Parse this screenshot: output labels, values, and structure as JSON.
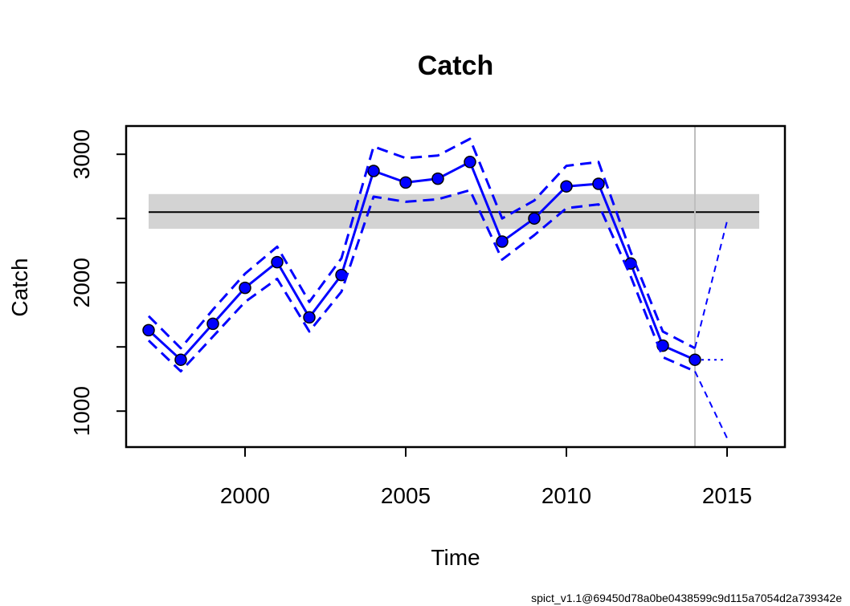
{
  "chart_data": {
    "type": "line",
    "title": "Catch",
    "xlabel": "Time",
    "ylabel": "Catch",
    "xlim": [
      1996.3,
      2016.8
    ],
    "ylim": [
      720,
      3220
    ],
    "x_ticks": [
      2000,
      2005,
      2010,
      2015
    ],
    "y_ticks": [
      1000,
      1500,
      2000,
      2500,
      3000
    ],
    "y_tick_labels": [
      "1000",
      "",
      "2000",
      "",
      "3000"
    ],
    "grid": false,
    "colors": {
      "series": "#0000ff",
      "band": "#d3d3d3",
      "reference": "#000000",
      "vline": "#bebebe"
    },
    "reference_band": {
      "x": [
        1997,
        2016
      ],
      "lower": 2420,
      "center": 2550,
      "upper": 2690
    },
    "vertical_line_x": 2014,
    "series": [
      {
        "role": "estimate",
        "style": "solid-with-points",
        "x": [
          1997,
          1998,
          1999,
          2000,
          2001,
          2002,
          2003,
          2004,
          2005,
          2006,
          2007,
          2008,
          2009,
          2010,
          2011,
          2012,
          2013,
          2014
        ],
        "values": [
          1630,
          1400,
          1680,
          1960,
          2160,
          1730,
          2060,
          2870,
          2780,
          2810,
          2940,
          2320,
          2500,
          2750,
          2770,
          2150,
          1510,
          1400
        ]
      },
      {
        "role": "upper-ci",
        "style": "dashed",
        "x": [
          1997,
          1998,
          1999,
          2000,
          2001,
          2002,
          2003,
          2004,
          2005,
          2006,
          2007,
          2008,
          2009,
          2010,
          2011,
          2012,
          2013,
          2014
        ],
        "values": [
          1740,
          1490,
          1790,
          2070,
          2280,
          1850,
          2190,
          3060,
          2970,
          2990,
          3120,
          2500,
          2640,
          2910,
          2940,
          2240,
          1620,
          1490
        ]
      },
      {
        "role": "lower-ci",
        "style": "dashed",
        "x": [
          1997,
          1998,
          1999,
          2000,
          2001,
          2002,
          2003,
          2004,
          2005,
          2006,
          2007,
          2008,
          2009,
          2010,
          2011,
          2012,
          2013,
          2014
        ],
        "values": [
          1550,
          1310,
          1580,
          1850,
          2030,
          1620,
          1930,
          2670,
          2630,
          2650,
          2720,
          2180,
          2370,
          2580,
          2610,
          2050,
          1420,
          1310
        ]
      },
      {
        "role": "forecast",
        "style": "dotted",
        "x": [
          2014,
          2015
        ],
        "values": [
          1400,
          1400
        ]
      },
      {
        "role": "forecast-upper",
        "style": "thin-dashed",
        "x": [
          2014,
          2015
        ],
        "values": [
          1490,
          2480
        ]
      },
      {
        "role": "forecast-lower",
        "style": "thin-dashed",
        "x": [
          2014,
          2015
        ],
        "values": [
          1310,
          790
        ]
      }
    ]
  },
  "footer": {
    "version_text": "spict_v1.1@69450d78a0be0438599c9d115a7054d2a739342e"
  }
}
